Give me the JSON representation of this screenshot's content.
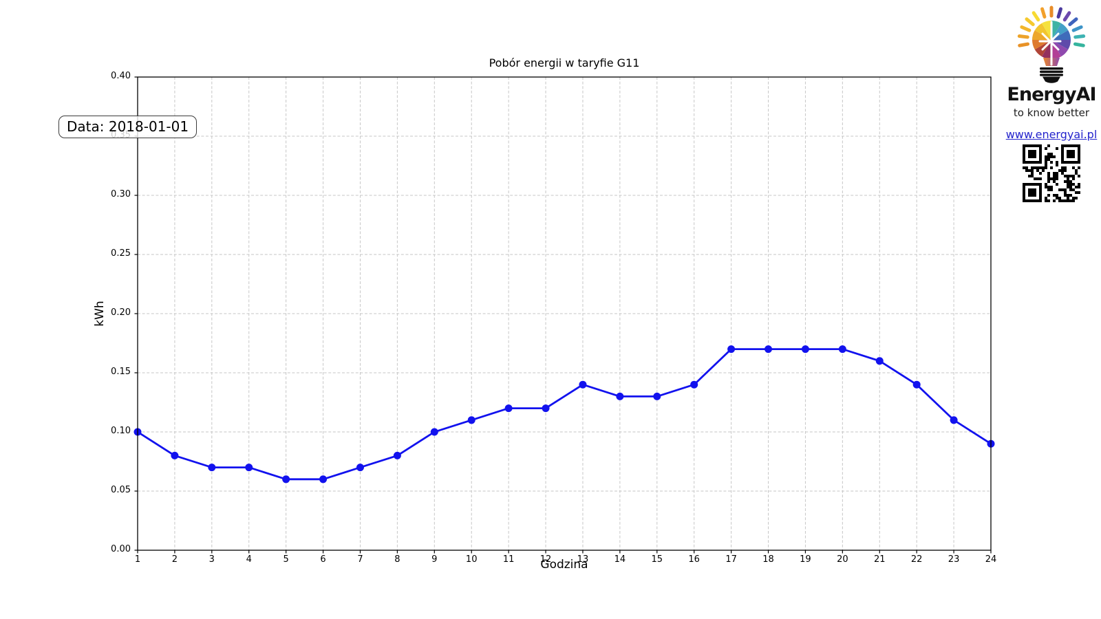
{
  "chart_data": {
    "type": "line",
    "title": "Pobór energii w taryfie G11",
    "xlabel": "Godzina",
    "ylabel": "kWh",
    "x": [
      1,
      2,
      3,
      4,
      5,
      6,
      7,
      8,
      9,
      10,
      11,
      12,
      13,
      14,
      15,
      16,
      17,
      18,
      19,
      20,
      21,
      22,
      23,
      24
    ],
    "values": [
      0.1,
      0.08,
      0.07,
      0.07,
      0.06,
      0.06,
      0.07,
      0.08,
      0.1,
      0.11,
      0.12,
      0.12,
      0.14,
      0.13,
      0.13,
      0.14,
      0.17,
      0.17,
      0.17,
      0.17,
      0.16,
      0.14,
      0.11,
      0.09
    ],
    "ylim": [
      0.0,
      0.4
    ],
    "ytick_step": 0.05,
    "xlim": [
      1,
      24
    ],
    "grid": true,
    "legend": "none",
    "line_color": "#1212ee",
    "marker": "circle",
    "grid_color": "#c6c6c6",
    "spine_color": "#000000"
  },
  "annotation": {
    "label": "Data: 2018-01-01"
  },
  "branding": {
    "name": "EnergyAI",
    "tagline": "to know better",
    "url": "www.energyai.pl",
    "url_color": "#2323cc",
    "bulb_slice_colors": [
      "#3fb3a4",
      "#44a0c8",
      "#3f6cba",
      "#5f4aaa",
      "#8f49ae",
      "#b23f96",
      "#93305e",
      "#b04438",
      "#de7a2f",
      "#eda72c",
      "#f2c52f",
      "#f5e13e"
    ],
    "ray_colors": [
      "#e89227",
      "#eda32a",
      "#f2b62c",
      "#f5c92e",
      "#f7da33",
      "#f2a02c",
      "#e88c28",
      "#4b3a9e",
      "#6c49ad",
      "#3e63bd",
      "#3e94c8",
      "#3db3b3",
      "#36b49e"
    ],
    "neck_gradient": [
      "#e8862d",
      "#8f49ae"
    ],
    "base_color": "#101010",
    "qr_icon": "qr-code"
  }
}
